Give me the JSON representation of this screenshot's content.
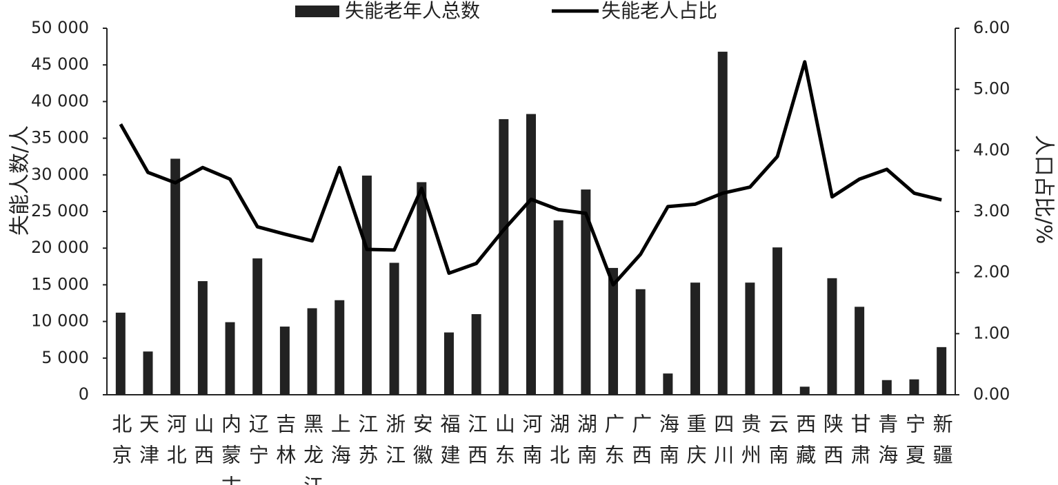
{
  "chart_data": {
    "type": "bar_line",
    "y_label": "失能人数/人",
    "y2_label": "人口占比/%",
    "categories": [
      "北京",
      "天津",
      "河北",
      "山西",
      "内蒙古",
      "辽宁",
      "吉林",
      "黑龙江",
      "上海",
      "江苏",
      "浙江",
      "安徽",
      "福建",
      "江西",
      "山东",
      "河南",
      "湖北",
      "湖南",
      "广东",
      "广西",
      "海南",
      "重庆",
      "四川",
      "贵州",
      "云南",
      "西藏",
      "陕西",
      "甘肃",
      "青海",
      "宁夏",
      "新疆"
    ],
    "series": [
      {
        "name": "失能老年人总数",
        "type": "bar",
        "color": "#222222",
        "axis": "y",
        "values": [
          11200,
          5900,
          32200,
          15500,
          9900,
          18600,
          9300,
          11800,
          12900,
          29900,
          18000,
          29000,
          8500,
          11000,
          37600,
          38300,
          23800,
          28000,
          17300,
          14400,
          2900,
          15300,
          46800,
          15300,
          20100,
          1100,
          15900,
          12000,
          2000,
          2100,
          6500
        ]
      },
      {
        "name": "失能老人占比",
        "type": "line",
        "color": "#000000",
        "axis": "y2",
        "values": [
          4.43,
          3.64,
          3.47,
          3.72,
          3.53,
          2.75,
          2.63,
          2.52,
          3.72,
          2.38,
          2.37,
          3.38,
          1.99,
          2.15,
          2.7,
          3.2,
          3.03,
          2.97,
          1.8,
          2.3,
          3.08,
          3.12,
          3.3,
          3.4,
          3.9,
          5.45,
          3.24,
          3.53,
          3.69,
          3.3,
          3.19
        ]
      }
    ],
    "ylim": [
      0,
      50000
    ],
    "yticks": [
      0,
      {
        "value": 5000,
        "label": "5 000"
      },
      {
        "value": 10000,
        "label": "10 000"
      },
      {
        "value": 15000,
        "label": "15 000"
      },
      {
        "value": 20000,
        "label": "20 000"
      },
      {
        "value": 25000,
        "label": "25 000"
      },
      {
        "value": 30000,
        "label": "30 000"
      },
      {
        "value": 35000,
        "label": "35 000"
      },
      {
        "value": 40000,
        "label": "40 000"
      },
      {
        "value": 45000,
        "label": "45 000"
      },
      {
        "value": 50000,
        "label": "50 000"
      }
    ],
    "y2lim": [
      0,
      6
    ],
    "y2ticks": [
      {
        "value": 0,
        "label": "0.00"
      },
      {
        "value": 1,
        "label": "1.00"
      },
      {
        "value": 2,
        "label": "2.00"
      },
      {
        "value": 3,
        "label": "3.00"
      },
      {
        "value": 4,
        "label": "4.00"
      },
      {
        "value": 5,
        "label": "5.00"
      },
      {
        "value": 6,
        "label": "6.00"
      }
    ],
    "grid": false,
    "legend": "top"
  }
}
